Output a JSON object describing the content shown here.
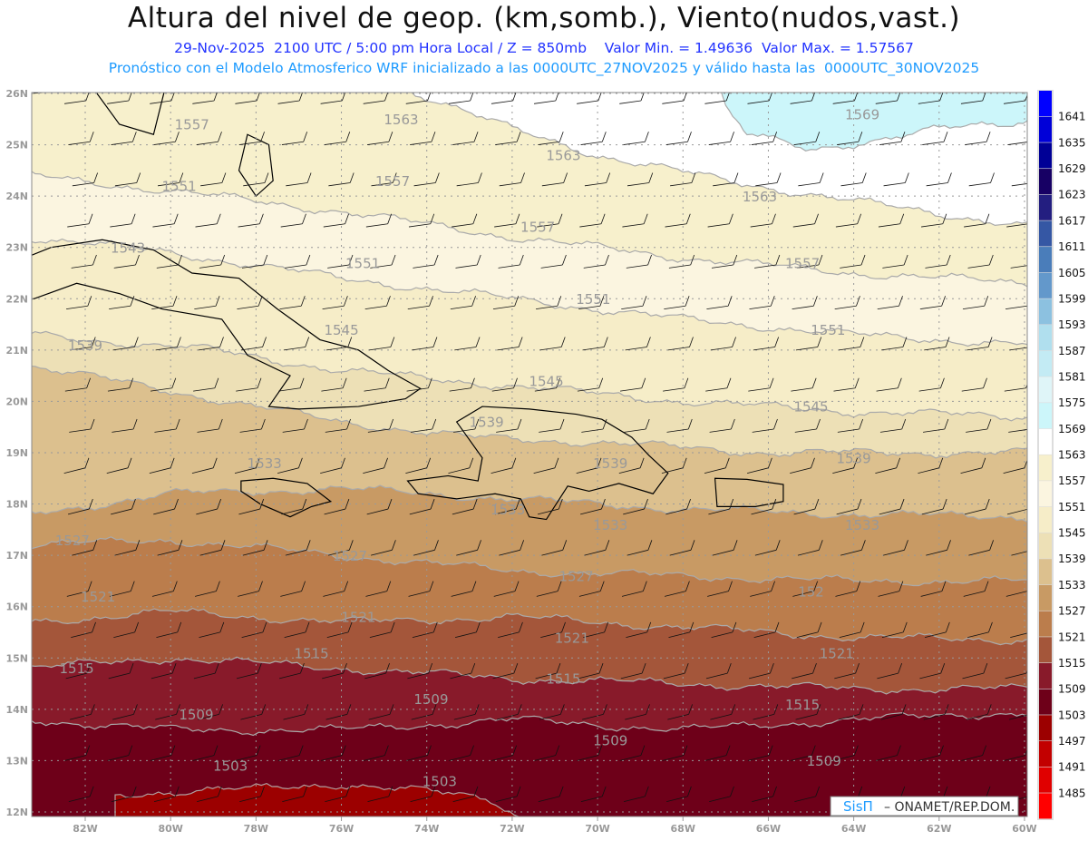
{
  "title": "Altura del nivel de geop. (km,somb.), Viento(nudos,vast.)",
  "subtitle": "29-Nov-2025  2100 UTC / 5:00 pm Hora Local / Z = 850mb    Valor Min. = 1.49636  Valor Max. = 1.57567",
  "info_line": "Pronóstico con el Modelo Atmosferico WRF inicializado a las 0000UTC_27NOV2025 y válido hasta las  0000UTC_30NOV2025",
  "credit": {
    "brand": "SisΠ",
    "text": "–  ONAMET/REP.DOM."
  },
  "axes": {
    "lon_labels": [
      {
        "lon": -82,
        "label": "82W"
      },
      {
        "lon": -80,
        "label": "80W"
      },
      {
        "lon": -78,
        "label": "78W"
      },
      {
        "lon": -76,
        "label": "76W"
      },
      {
        "lon": -74,
        "label": "74W"
      },
      {
        "lon": -72,
        "label": "72W"
      },
      {
        "lon": -70,
        "label": "70W"
      },
      {
        "lon": -68,
        "label": "68W"
      },
      {
        "lon": -66,
        "label": "66W"
      },
      {
        "lon": -64,
        "label": "64W"
      },
      {
        "lon": -62,
        "label": "62W"
      },
      {
        "lon": -60,
        "label": "60W"
      }
    ],
    "lat_labels": [
      {
        "lat": 26,
        "label": "26N"
      },
      {
        "lat": 25,
        "label": "25N"
      },
      {
        "lat": 24,
        "label": "24N"
      },
      {
        "lat": 23,
        "label": "23N"
      },
      {
        "lat": 22,
        "label": "22N"
      },
      {
        "lat": 21,
        "label": "21N"
      },
      {
        "lat": 20,
        "label": "20N"
      },
      {
        "lat": 19,
        "label": "19N"
      },
      {
        "lat": 18,
        "label": "18N"
      },
      {
        "lat": 17,
        "label": "17N"
      },
      {
        "lat": 16,
        "label": "16N"
      },
      {
        "lat": 15,
        "label": "15N"
      },
      {
        "lat": 14,
        "label": "14N"
      },
      {
        "lat": 13,
        "label": "13N"
      },
      {
        "lat": 12,
        "label": "12N"
      }
    ]
  },
  "colorbar": [
    {
      "label": "1485",
      "color": "#ff0000"
    },
    {
      "label": "1491",
      "color": "#e00000"
    },
    {
      "label": "1497",
      "color": "#c20000"
    },
    {
      "label": "1503",
      "color": "#9c0000"
    },
    {
      "label": "1509",
      "color": "#6e0019"
    },
    {
      "label": "1515",
      "color": "#881a2a"
    },
    {
      "label": "1521",
      "color": "#a4563a"
    },
    {
      "label": "1527",
      "color": "#bb7d4c"
    },
    {
      "label": "1533",
      "color": "#c89a64"
    },
    {
      "label": "1539",
      "color": "#dcc08e"
    },
    {
      "label": "1545",
      "color": "#ede0b6"
    },
    {
      "label": "1551",
      "color": "#f6edc8"
    },
    {
      "label": "1557",
      "color": "#fbf5e0"
    },
    {
      "label": "1563",
      "color": "#f7f0cc"
    },
    {
      "label": "1569",
      "color": "#ffffff"
    },
    {
      "label": "1575",
      "color": "#ccf6fa"
    },
    {
      "label": "1581",
      "color": "#dff5f8"
    },
    {
      "label": "1587",
      "color": "#c3ebf4"
    },
    {
      "label": "1593",
      "color": "#b0dfee"
    },
    {
      "label": "1599",
      "color": "#8cc1e0"
    },
    {
      "label": "1605",
      "color": "#6398cb"
    },
    {
      "label": "1611",
      "color": "#4a7dba"
    },
    {
      "label": "1617",
      "color": "#3557a4"
    },
    {
      "label": "1623",
      "color": "#231e80"
    },
    {
      "label": "1629",
      "color": "#170064"
    },
    {
      "label": "1635",
      "color": "#000096"
    },
    {
      "label": "1641",
      "color": "#0000d8"
    },
    {
      "label": "",
      "color": "#0000ff"
    }
  ],
  "contours": [
    {
      "level": 1563,
      "below_color": "#f7f0cc",
      "pts": [
        [
          -83.3,
          26.3
        ],
        [
          -74.5,
          26.1
        ],
        [
          -72,
          25.3
        ],
        [
          -70,
          24.8
        ],
        [
          -67,
          24.3
        ],
        [
          -64,
          23.9
        ],
        [
          -59.8,
          23.4
        ]
      ]
    },
    {
      "level": 1557,
      "below_color": "#fbf5e0",
      "pts": [
        [
          -83.3,
          24.4
        ],
        [
          -80,
          24.1
        ],
        [
          -76,
          23.7
        ],
        [
          -72,
          23.2
        ],
        [
          -68,
          22.8
        ],
        [
          -64,
          22.5
        ],
        [
          -59.8,
          22.3
        ]
      ]
    },
    {
      "level": 1551,
      "below_color": "#f6edc8",
      "pts": [
        [
          -83.3,
          23.2
        ],
        [
          -80,
          22.9
        ],
        [
          -76,
          22.4
        ],
        [
          -72,
          22.0
        ],
        [
          -68,
          21.6
        ],
        [
          -64,
          21.3
        ],
        [
          -59.8,
          21.1
        ]
      ]
    },
    {
      "level": 1545,
      "below_color": "#ede0b6",
      "pts": [
        [
          -83.3,
          21.3
        ],
        [
          -79,
          21.0
        ],
        [
          -76,
          20.6
        ],
        [
          -72,
          20.3
        ],
        [
          -68,
          20.0
        ],
        [
          -64,
          19.8
        ],
        [
          -59.8,
          19.7
        ]
      ]
    },
    {
      "level": 1539,
      "below_color": "#dcc08e",
      "pts": [
        [
          -83.3,
          20.7
        ],
        [
          -80,
          20.2
        ],
        [
          -76,
          19.6
        ],
        [
          -73,
          19.3
        ],
        [
          -70,
          19.2
        ],
        [
          -66,
          19.0
        ],
        [
          -59.8,
          19.0
        ]
      ]
    },
    {
      "level": 1533,
      "below_color": "#c89a64",
      "pts": [
        [
          -83.3,
          17.8
        ],
        [
          -80,
          18.2
        ],
        [
          -76,
          18.3
        ],
        [
          -72,
          18.1
        ],
        [
          -68,
          17.9
        ],
        [
          -64,
          17.8
        ],
        [
          -59.8,
          17.75
        ]
      ]
    },
    {
      "level": 1527,
      "below_color": "#bb7d4c",
      "pts": [
        [
          -83.3,
          17.2
        ],
        [
          -80,
          17.3
        ],
        [
          -76,
          17.0
        ],
        [
          -72,
          16.7
        ],
        [
          -68,
          16.6
        ],
        [
          -64,
          16.5
        ],
        [
          -59.8,
          16.5
        ]
      ]
    },
    {
      "level": 1521,
      "below_color": "#a4563a",
      "pts": [
        [
          -83.3,
          15.7
        ],
        [
          -80,
          15.9
        ],
        [
          -76,
          15.7
        ],
        [
          -72,
          15.8
        ],
        [
          -68,
          15.6
        ],
        [
          -64,
          15.4
        ],
        [
          -59.8,
          15.35
        ]
      ]
    },
    {
      "level": 1515,
      "below_color": "#881a2a",
      "pts": [
        [
          -83.3,
          14.8
        ],
        [
          -80,
          15.0
        ],
        [
          -76,
          14.8
        ],
        [
          -72,
          14.6
        ],
        [
          -68,
          14.5
        ],
        [
          -64,
          14.4
        ],
        [
          -59.8,
          14.4
        ]
      ]
    },
    {
      "level": 1509,
      "below_color": "#6e0019",
      "pts": [
        [
          -83.3,
          13.8
        ],
        [
          -80,
          13.6
        ],
        [
          -76,
          13.6
        ],
        [
          -72,
          13.8
        ],
        [
          -68,
          13.6
        ],
        [
          -64,
          13.8
        ],
        [
          -59.8,
          13.95
        ]
      ]
    },
    {
      "level": 1503,
      "below_color": "#9c0000",
      "pts": [
        [
          -81.3,
          11.6
        ],
        [
          -81.3,
          12.35
        ],
        [
          -78,
          12.45
        ],
        [
          -76,
          12.55
        ],
        [
          -74,
          12.4
        ],
        [
          -72.5,
          12.25
        ],
        [
          -71.2,
          11.6
        ]
      ]
    }
  ],
  "high_region": {
    "level": 1569,
    "color": "#ccf6fa",
    "pts": [
      [
        -67.2,
        26.3
      ],
      [
        -67.0,
        25.7
      ],
      [
        -66.5,
        25.2
      ],
      [
        -65,
        24.9
      ],
      [
        -63.5,
        25.1
      ],
      [
        -62,
        25.3
      ],
      [
        -60.5,
        25.4
      ],
      [
        -59.8,
        25.5
      ],
      [
        -59.8,
        26.3
      ]
    ]
  },
  "contour_labels": [
    {
      "text": "1557",
      "lon": -79.5,
      "lat": 25.3
    },
    {
      "text": "1563",
      "lon": -74.6,
      "lat": 25.4
    },
    {
      "text": "1569",
      "lon": -63.8,
      "lat": 25.5
    },
    {
      "text": "1551",
      "lon": -79.8,
      "lat": 24.1
    },
    {
      "text": "1557",
      "lon": -74.8,
      "lat": 24.2
    },
    {
      "text": "1563",
      "lon": -70.8,
      "lat": 24.7
    },
    {
      "text": "1563",
      "lon": -66.2,
      "lat": 23.9
    },
    {
      "text": "1543",
      "lon": -81.0,
      "lat": 22.9
    },
    {
      "text": "1551",
      "lon": -75.5,
      "lat": 22.6
    },
    {
      "text": "1557",
      "lon": -71.4,
      "lat": 23.3
    },
    {
      "text": "1557",
      "lon": -65.2,
      "lat": 22.6
    },
    {
      "text": "1551",
      "lon": -70.1,
      "lat": 21.9
    },
    {
      "text": "1545",
      "lon": -76.0,
      "lat": 21.3
    },
    {
      "text": "1551",
      "lon": -64.6,
      "lat": 21.3
    },
    {
      "text": "1539",
      "lon": -82.0,
      "lat": 21.0
    },
    {
      "text": "1545",
      "lon": -71.2,
      "lat": 20.3
    },
    {
      "text": "1545",
      "lon": -65.0,
      "lat": 19.8
    },
    {
      "text": "1539",
      "lon": -72.6,
      "lat": 19.5
    },
    {
      "text": "1539",
      "lon": -69.7,
      "lat": 18.7
    },
    {
      "text": "1539",
      "lon": -64.0,
      "lat": 18.8
    },
    {
      "text": "1533",
      "lon": -77.8,
      "lat": 18.7
    },
    {
      "text": "1533",
      "lon": -72.1,
      "lat": 17.8
    },
    {
      "text": "1533",
      "lon": -69.7,
      "lat": 17.5
    },
    {
      "text": "1533",
      "lon": -63.8,
      "lat": 17.5
    },
    {
      "text": "1527",
      "lon": -82.3,
      "lat": 17.2
    },
    {
      "text": "1527",
      "lon": -75.8,
      "lat": 16.9
    },
    {
      "text": "1527",
      "lon": -70.5,
      "lat": 16.5
    },
    {
      "text": "152",
      "lon": -65.0,
      "lat": 16.2
    },
    {
      "text": "1521",
      "lon": -81.7,
      "lat": 16.1
    },
    {
      "text": "1521",
      "lon": -75.6,
      "lat": 15.7
    },
    {
      "text": "1521",
      "lon": -70.6,
      "lat": 15.3
    },
    {
      "text": "1521",
      "lon": -64.4,
      "lat": 15.0
    },
    {
      "text": "1515",
      "lon": -76.7,
      "lat": 15.0
    },
    {
      "text": "1515",
      "lon": -82.2,
      "lat": 14.7
    },
    {
      "text": "1515",
      "lon": -70.8,
      "lat": 14.5
    },
    {
      "text": "1515",
      "lon": -65.2,
      "lat": 14.0
    },
    {
      "text": "1509",
      "lon": -79.4,
      "lat": 13.8
    },
    {
      "text": "1509",
      "lon": -73.9,
      "lat": 14.1
    },
    {
      "text": "1509",
      "lon": -69.7,
      "lat": 13.3
    },
    {
      "text": "1509",
      "lon": -64.7,
      "lat": 12.9
    },
    {
      "text": "1503",
      "lon": -78.6,
      "lat": 12.8
    },
    {
      "text": "1503",
      "lon": -73.7,
      "lat": 12.5
    }
  ]
}
